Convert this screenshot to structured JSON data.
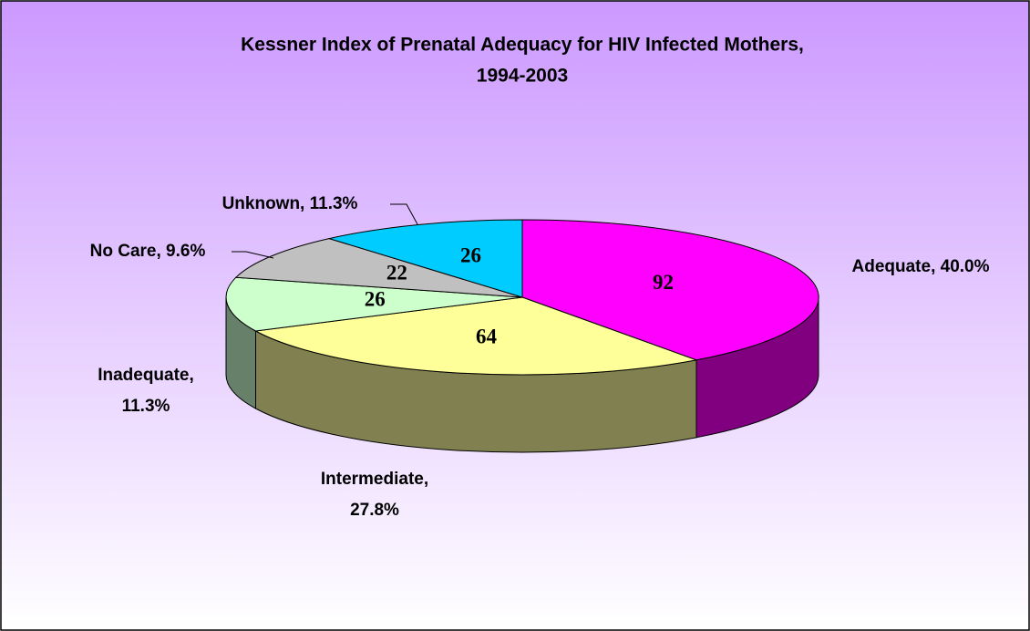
{
  "chart_data": {
    "type": "pie3d",
    "title": [
      "Kessner Index of  Prenatal Adequacy for HIV Infected Mothers,",
      "1994-2003"
    ],
    "values": [
      92,
      64,
      26,
      22,
      26
    ],
    "labels": [
      [
        "Adequate, 40.0%"
      ],
      [
        "Intermediate,",
        "27.8%"
      ],
      [
        "Inadequate,",
        "11.3%"
      ],
      [
        "No Care, 9.6%"
      ],
      [
        "Unknown, 11.3%"
      ]
    ],
    "colors": [
      "#ff00ff",
      "#ffff99",
      "#ccffcc",
      "#c0c0c0",
      "#00ccff"
    ],
    "side_colors": [
      "#800080",
      "#808050",
      "#66806a",
      "#808080",
      "#0088aa"
    ]
  }
}
